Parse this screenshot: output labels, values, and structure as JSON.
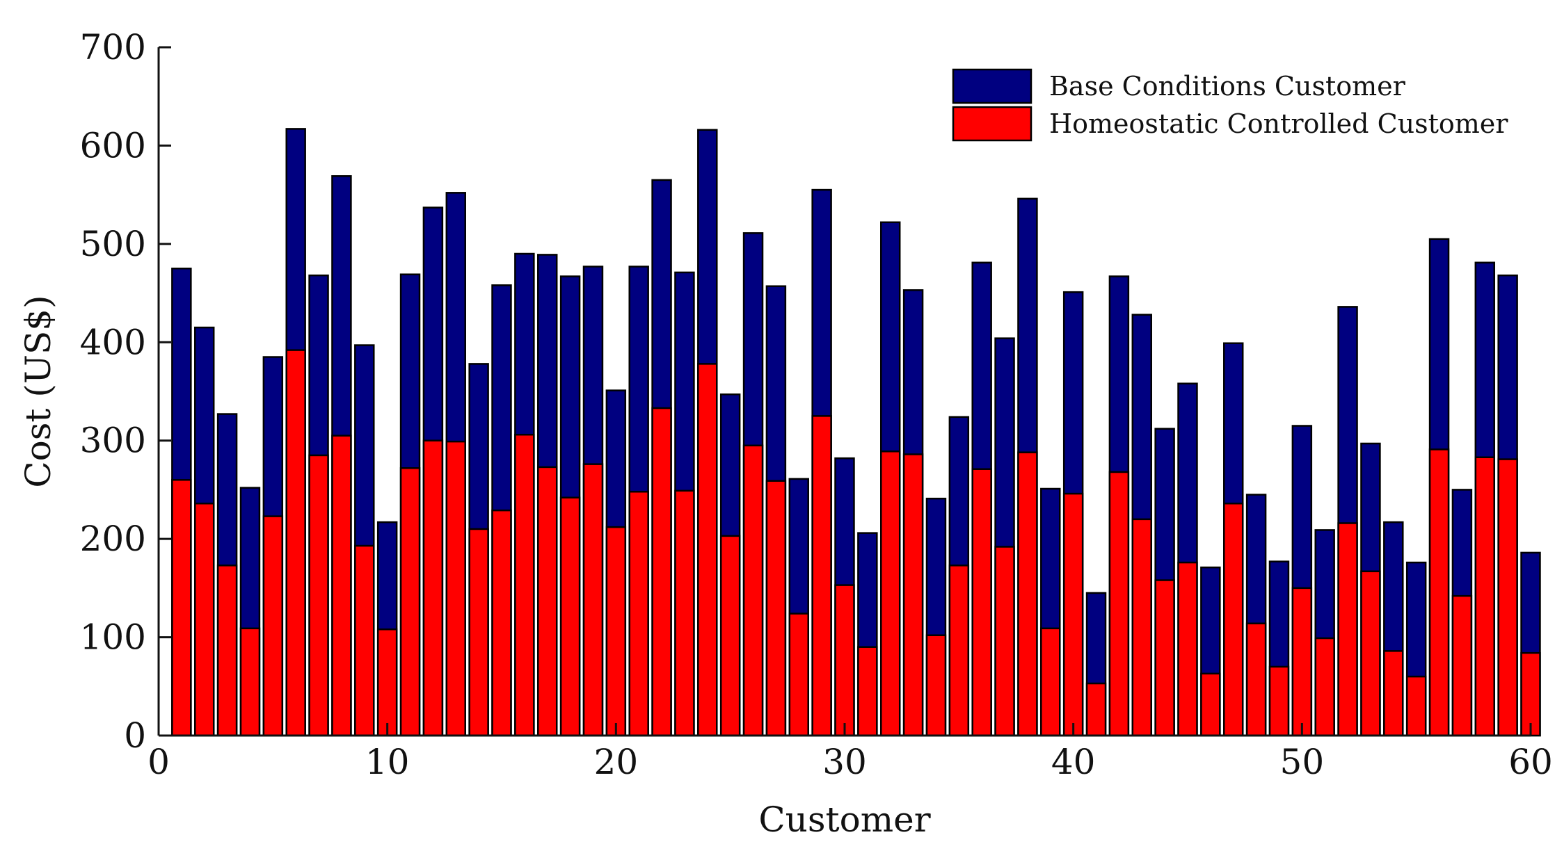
{
  "chart_data": {
    "type": "bar",
    "title": "",
    "xlabel": "Customer",
    "ylabel": "Cost (US$)",
    "xlim": [
      0,
      60
    ],
    "ylim": [
      0,
      700
    ],
    "xticks": [
      "0",
      "10",
      "20",
      "30",
      "40",
      "50",
      "60"
    ],
    "yticks": [
      "0",
      "100",
      "200",
      "300",
      "400",
      "500",
      "600",
      "700"
    ],
    "legend_position": "top-right",
    "grid": false,
    "categories": [
      1,
      2,
      3,
      4,
      5,
      6,
      7,
      8,
      9,
      10,
      11,
      12,
      13,
      14,
      15,
      16,
      17,
      18,
      19,
      20,
      21,
      22,
      23,
      24,
      25,
      26,
      27,
      28,
      29,
      30,
      31,
      32,
      33,
      34,
      35,
      36,
      37,
      38,
      39,
      40,
      41,
      42,
      43,
      44,
      45,
      46,
      47,
      48,
      49,
      50,
      51,
      52,
      53,
      54,
      55,
      56,
      57,
      58,
      59,
      60
    ],
    "series": [
      {
        "name": "Base Conditions Customer",
        "color": "#000080",
        "values": [
          475,
          415,
          327,
          252,
          385,
          617,
          468,
          569,
          397,
          217,
          469,
          537,
          552,
          378,
          458,
          490,
          489,
          467,
          477,
          351,
          477,
          565,
          471,
          616,
          347,
          511,
          457,
          261,
          555,
          282,
          206,
          522,
          453,
          241,
          324,
          481,
          404,
          546,
          251,
          451,
          145,
          467,
          428,
          312,
          358,
          171,
          399,
          245,
          177,
          315,
          209,
          436,
          297,
          217,
          176,
          505,
          250,
          481,
          468,
          186
        ]
      },
      {
        "name": "Homeostatic Controlled Customer",
        "color": "#ff0000",
        "values": [
          260,
          236,
          173,
          109,
          223,
          392,
          285,
          305,
          193,
          108,
          272,
          300,
          299,
          210,
          229,
          306,
          273,
          242,
          276,
          212,
          248,
          333,
          249,
          378,
          203,
          295,
          259,
          124,
          325,
          153,
          90,
          289,
          286,
          102,
          173,
          271,
          192,
          288,
          109,
          246,
          53,
          268,
          220,
          158,
          176,
          63,
          236,
          114,
          70,
          150,
          99,
          216,
          167,
          86,
          60,
          291,
          142,
          283,
          281,
          84
        ]
      }
    ]
  }
}
